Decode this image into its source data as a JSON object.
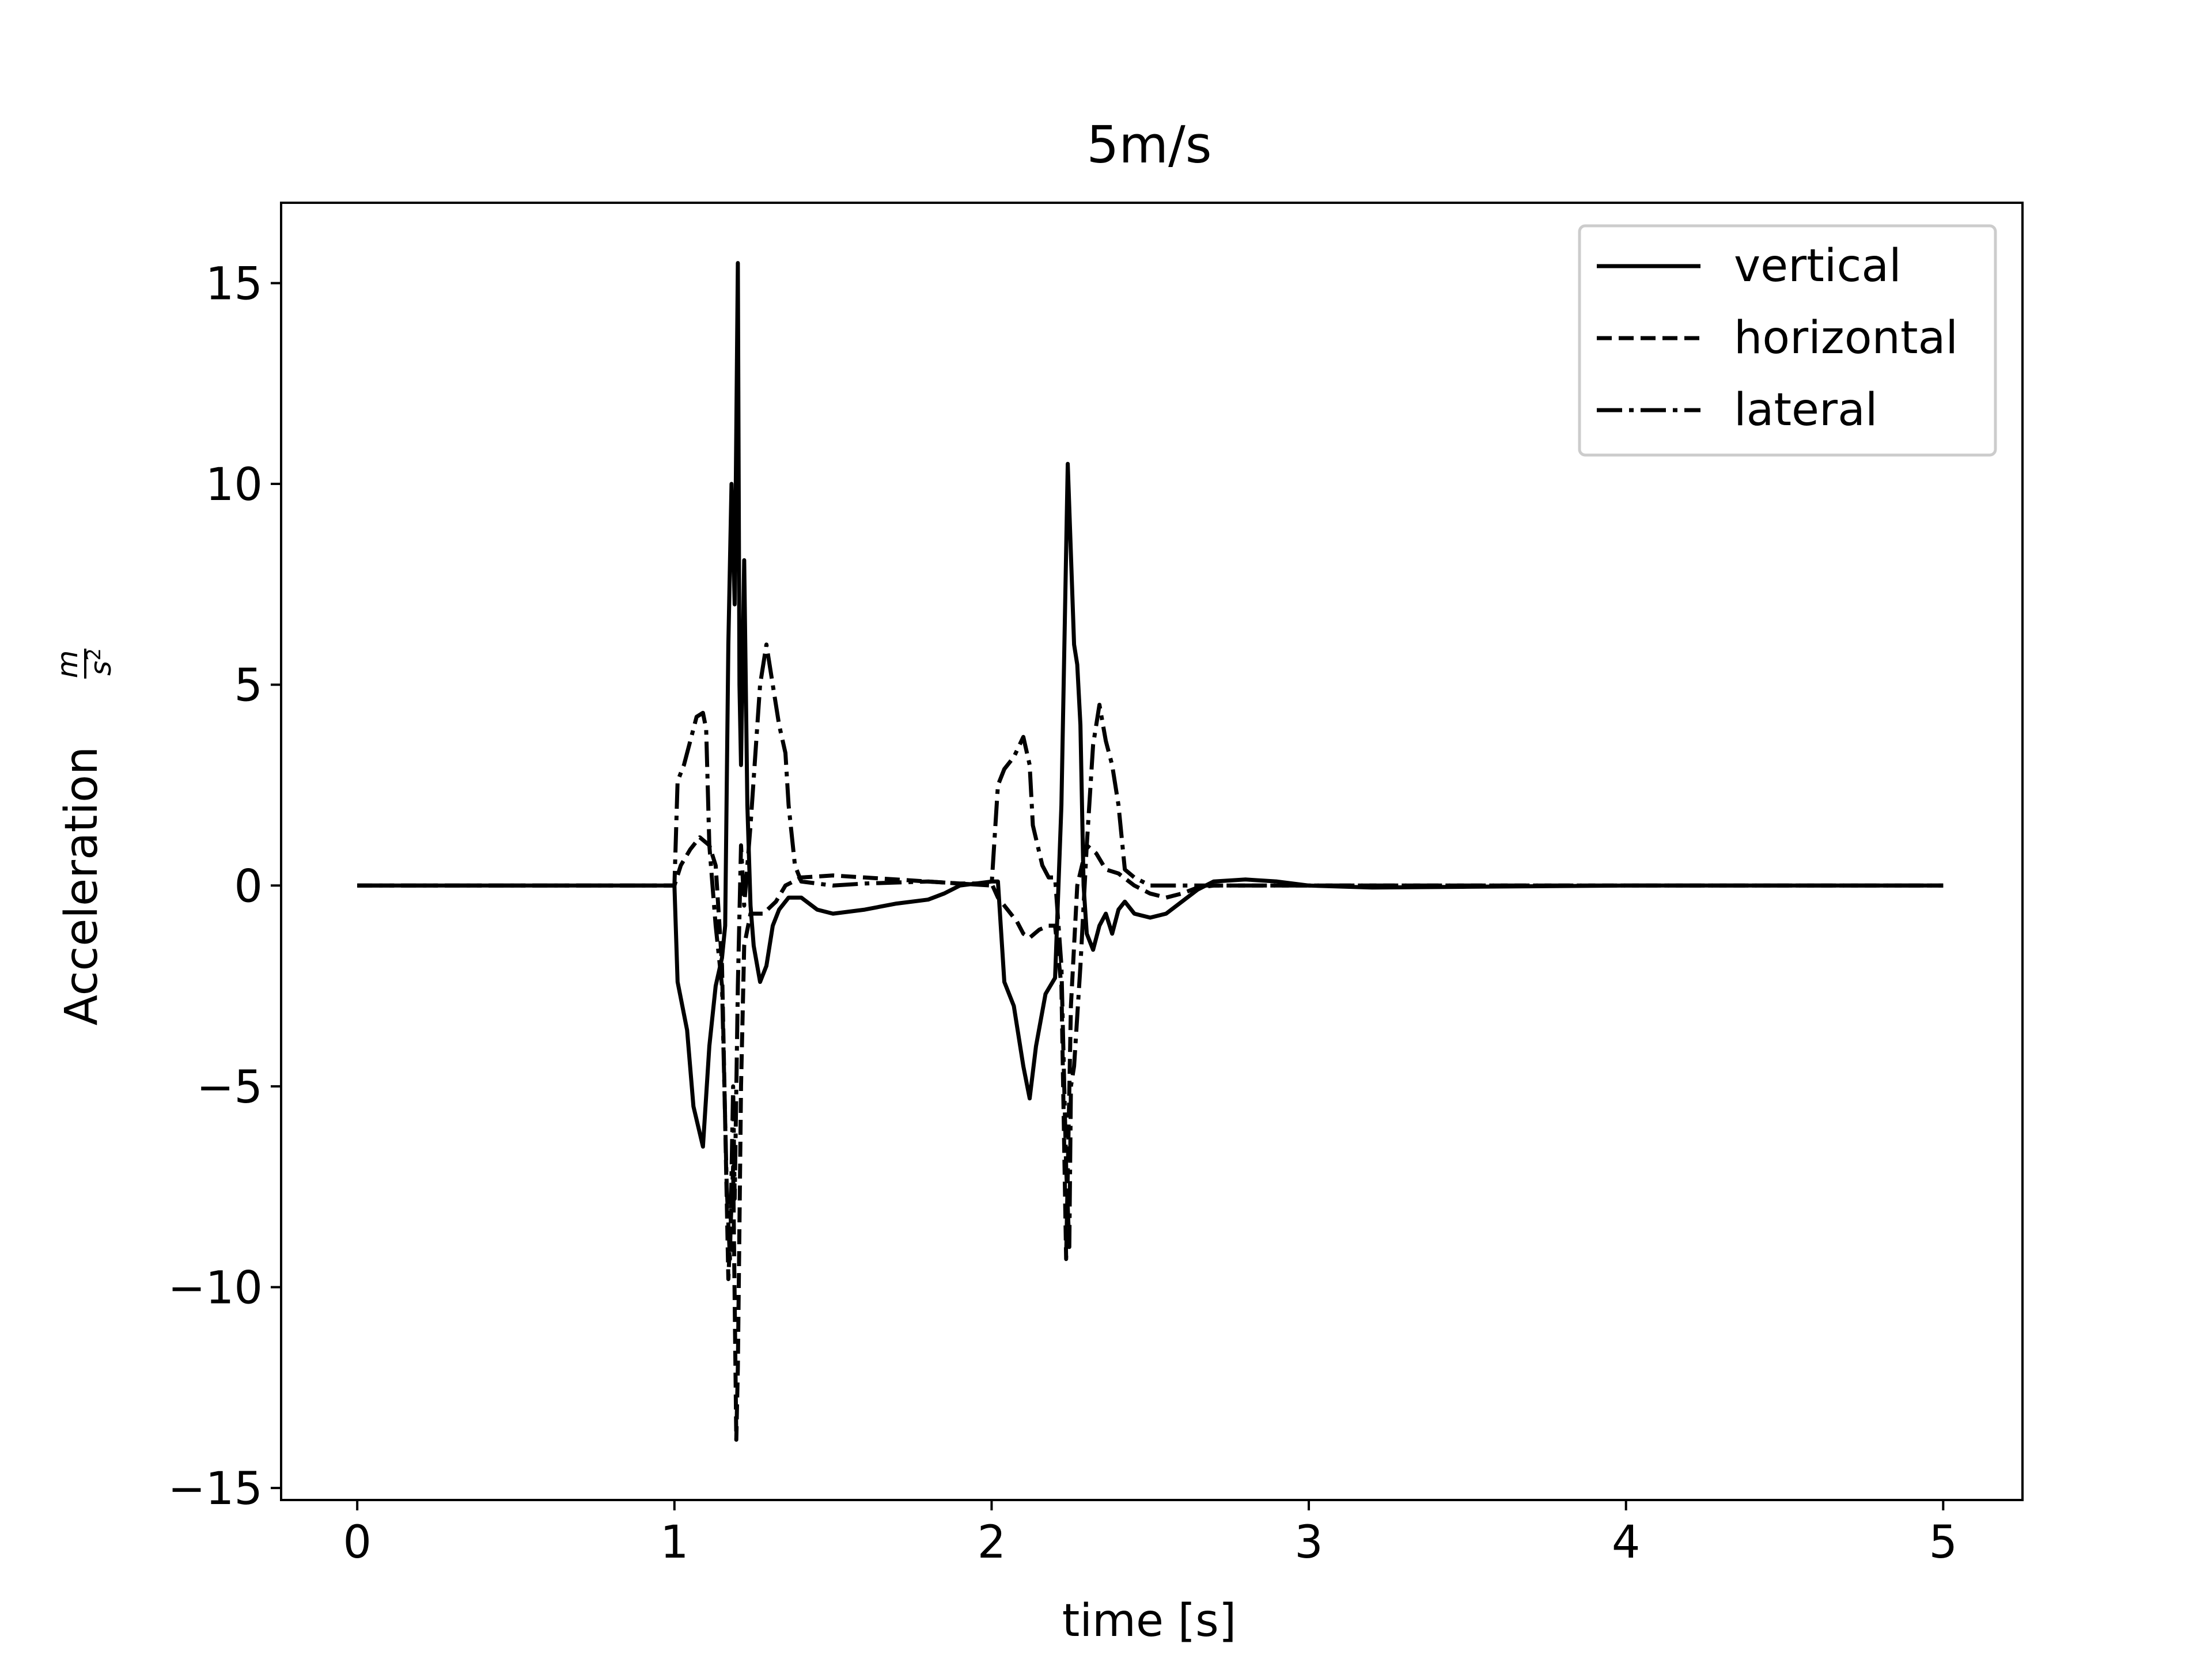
{
  "chart_data": {
    "type": "line",
    "title": "5m/s",
    "xlabel": "time [s]",
    "ylabel": "Acceleration",
    "ylabel_unit": {
      "numerator": "m",
      "denominator": "s",
      "exponent": "2"
    },
    "xlim": [
      -0.24,
      5.25
    ],
    "ylim": [
      -15.3,
      17.0
    ],
    "xticks": [
      0,
      1,
      2,
      3,
      4,
      5
    ],
    "xtick_labels": [
      "0",
      "1",
      "2",
      "3",
      "4",
      "5"
    ],
    "yticks": [
      -15,
      -10,
      -5,
      0,
      5,
      10,
      15
    ],
    "ytick_labels": [
      "−15",
      "−10",
      "−5",
      "0",
      "5",
      "10",
      "15"
    ],
    "grid": false,
    "legend_position": "top-right",
    "colors": {
      "line": "#000000",
      "frame": "#000000",
      "legend_border": "#cccccc"
    },
    "series": [
      {
        "name": "vertical",
        "style": "solid",
        "points": [
          [
            0,
            0
          ],
          [
            1.0,
            0
          ],
          [
            1.01,
            -2.4
          ],
          [
            1.04,
            -3.6
          ],
          [
            1.06,
            -5.5
          ],
          [
            1.09,
            -6.5
          ],
          [
            1.11,
            -4.0
          ],
          [
            1.13,
            -2.5
          ],
          [
            1.15,
            -1.8
          ],
          [
            1.16,
            -1.0
          ],
          [
            1.17,
            6.0
          ],
          [
            1.18,
            10.0
          ],
          [
            1.19,
            7.0
          ],
          [
            1.2,
            15.5
          ],
          [
            1.205,
            5.0
          ],
          [
            1.21,
            3.0
          ],
          [
            1.22,
            8.1
          ],
          [
            1.23,
            2.0
          ],
          [
            1.24,
            -0.5
          ],
          [
            1.25,
            -1.5
          ],
          [
            1.27,
            -2.4
          ],
          [
            1.29,
            -2.0
          ],
          [
            1.31,
            -1.0
          ],
          [
            1.33,
            -0.6
          ],
          [
            1.36,
            -0.3
          ],
          [
            1.4,
            -0.3
          ],
          [
            1.45,
            -0.6
          ],
          [
            1.5,
            -0.7
          ],
          [
            1.6,
            -0.6
          ],
          [
            1.7,
            -0.45
          ],
          [
            1.8,
            -0.35
          ],
          [
            1.85,
            -0.2
          ],
          [
            1.9,
            0.0
          ],
          [
            2.0,
            0.1
          ],
          [
            2.02,
            0.1
          ],
          [
            2.04,
            -2.4
          ],
          [
            2.07,
            -3.0
          ],
          [
            2.1,
            -4.5
          ],
          [
            2.12,
            -5.3
          ],
          [
            2.14,
            -4.0
          ],
          [
            2.17,
            -2.7
          ],
          [
            2.2,
            -2.3
          ],
          [
            2.22,
            2.0
          ],
          [
            2.24,
            10.5
          ],
          [
            2.26,
            6.0
          ],
          [
            2.27,
            5.5
          ],
          [
            2.28,
            4.0
          ],
          [
            2.29,
            0.0
          ],
          [
            2.3,
            -1.2
          ],
          [
            2.32,
            -1.6
          ],
          [
            2.34,
            -1.0
          ],
          [
            2.36,
            -0.7
          ],
          [
            2.38,
            -1.2
          ],
          [
            2.4,
            -0.6
          ],
          [
            2.42,
            -0.4
          ],
          [
            2.45,
            -0.7
          ],
          [
            2.5,
            -0.8
          ],
          [
            2.55,
            -0.7
          ],
          [
            2.6,
            -0.4
          ],
          [
            2.65,
            -0.1
          ],
          [
            2.7,
            0.1
          ],
          [
            2.8,
            0.15
          ],
          [
            2.9,
            0.1
          ],
          [
            3.0,
            0.0
          ],
          [
            3.2,
            -0.05
          ],
          [
            3.5,
            -0.03
          ],
          [
            4.0,
            0.0
          ],
          [
            5.0,
            0.0
          ]
        ]
      },
      {
        "name": "horizontal",
        "style": "dashed",
        "points": [
          [
            0,
            0
          ],
          [
            1.0,
            0
          ],
          [
            1.02,
            0.5
          ],
          [
            1.05,
            0.9
          ],
          [
            1.08,
            1.2
          ],
          [
            1.11,
            1.0
          ],
          [
            1.13,
            0.5
          ],
          [
            1.15,
            -2.0
          ],
          [
            1.17,
            -9.8
          ],
          [
            1.185,
            -7.0
          ],
          [
            1.195,
            -13.8
          ],
          [
            1.2,
            -12.0
          ],
          [
            1.21,
            -5.0
          ],
          [
            1.22,
            -1.5
          ],
          [
            1.24,
            -0.7
          ],
          [
            1.28,
            -0.7
          ],
          [
            1.32,
            -0.4
          ],
          [
            1.35,
            0.0
          ],
          [
            1.4,
            0.2
          ],
          [
            1.5,
            0.25
          ],
          [
            1.6,
            0.2
          ],
          [
            1.8,
            0.1
          ],
          [
            1.9,
            0.05
          ],
          [
            2.0,
            0.05
          ],
          [
            2.02,
            -0.3
          ],
          [
            2.05,
            -0.6
          ],
          [
            2.08,
            -0.9
          ],
          [
            2.1,
            -1.2
          ],
          [
            2.12,
            -1.3
          ],
          [
            2.15,
            -1.1
          ],
          [
            2.18,
            -1.0
          ],
          [
            2.2,
            -1.0
          ],
          [
            2.22,
            -2.5
          ],
          [
            2.235,
            -9.3
          ],
          [
            2.25,
            -3.0
          ],
          [
            2.27,
            0.0
          ],
          [
            2.3,
            1.0
          ],
          [
            2.33,
            0.8
          ],
          [
            2.36,
            0.4
          ],
          [
            2.4,
            0.3
          ],
          [
            2.45,
            0.0
          ],
          [
            2.5,
            -0.2
          ],
          [
            2.55,
            -0.3
          ],
          [
            2.6,
            -0.2
          ],
          [
            2.65,
            -0.05
          ],
          [
            2.7,
            0.0
          ],
          [
            3.0,
            0.0
          ],
          [
            5.0,
            0.0
          ]
        ]
      },
      {
        "name": "lateral",
        "style": "dashdot",
        "points": [
          [
            0,
            0
          ],
          [
            1.0,
            0
          ],
          [
            1.01,
            2.6
          ],
          [
            1.03,
            3.0
          ],
          [
            1.05,
            3.6
          ],
          [
            1.07,
            4.2
          ],
          [
            1.09,
            4.3
          ],
          [
            1.1,
            3.9
          ],
          [
            1.11,
            1.0
          ],
          [
            1.13,
            -1.0
          ],
          [
            1.15,
            -2.5
          ],
          [
            1.165,
            -7.5
          ],
          [
            1.175,
            -9.3
          ],
          [
            1.185,
            -5.0
          ],
          [
            1.19,
            -7.8
          ],
          [
            1.2,
            -2.5
          ],
          [
            1.21,
            1.0
          ],
          [
            1.22,
            -0.5
          ],
          [
            1.24,
            1.5
          ],
          [
            1.27,
            5.0
          ],
          [
            1.29,
            6.0
          ],
          [
            1.31,
            5.0
          ],
          [
            1.33,
            4.0
          ],
          [
            1.35,
            3.3
          ],
          [
            1.36,
            2.0
          ],
          [
            1.38,
            0.5
          ],
          [
            1.4,
            0.1
          ],
          [
            1.5,
            0.0
          ],
          [
            1.6,
            0.05
          ],
          [
            1.8,
            0.1
          ],
          [
            2.0,
            0.0
          ],
          [
            2.02,
            2.5
          ],
          [
            2.04,
            2.9
          ],
          [
            2.07,
            3.2
          ],
          [
            2.1,
            3.7
          ],
          [
            2.12,
            3.0
          ],
          [
            2.13,
            1.5
          ],
          [
            2.16,
            0.5
          ],
          [
            2.18,
            0.2
          ],
          [
            2.2,
            0.2
          ],
          [
            2.22,
            -2.0
          ],
          [
            2.235,
            -7.0
          ],
          [
            2.245,
            -9.0
          ],
          [
            2.25,
            -5.0
          ],
          [
            2.26,
            -4.5
          ],
          [
            2.28,
            -2.0
          ],
          [
            2.3,
            1.0
          ],
          [
            2.32,
            3.5
          ],
          [
            2.34,
            4.5
          ],
          [
            2.36,
            3.6
          ],
          [
            2.38,
            3.0
          ],
          [
            2.4,
            2.0
          ],
          [
            2.42,
            0.4
          ],
          [
            2.45,
            0.2
          ],
          [
            2.5,
            0.0
          ],
          [
            3.0,
            0.0
          ],
          [
            5.0,
            0.0
          ]
        ]
      }
    ]
  }
}
